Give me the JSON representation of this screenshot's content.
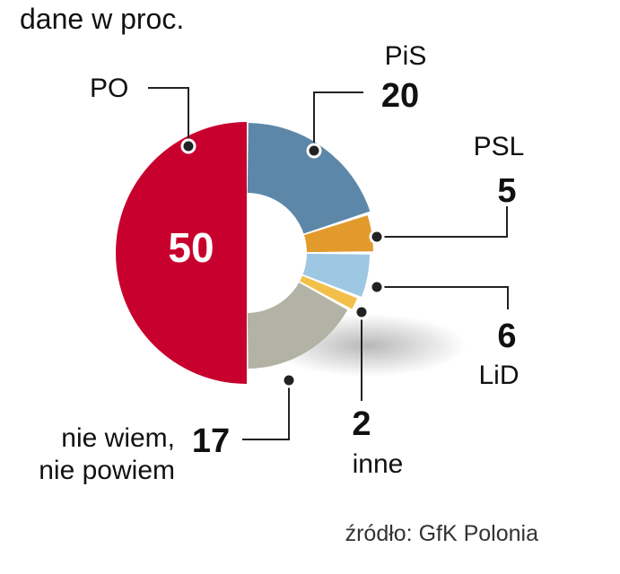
{
  "chart_data": {
    "type": "pie",
    "subtitle": "dane w proc.",
    "source": "źródło: GfK Polonia",
    "slices": [
      {
        "key": "pis",
        "label": "PiS",
        "value": 20,
        "value_text": "20",
        "color": "#5c87a8"
      },
      {
        "key": "psl",
        "label": "PSL",
        "value": 5,
        "value_text": "5",
        "color": "#e39a2d"
      },
      {
        "key": "lid",
        "label": "LiD",
        "value": 6,
        "value_text": "6",
        "color": "#9ec7e3"
      },
      {
        "key": "inne",
        "label": "inne",
        "value": 2,
        "value_text": "2",
        "color": "#f2c04a"
      },
      {
        "key": "nie",
        "label_line1": "nie wiem,",
        "label_line2": "nie powiem",
        "value": 17,
        "value_text": "17",
        "color": "#b3b3a5"
      },
      {
        "key": "po",
        "label": "PO",
        "value": 50,
        "value_text": "50",
        "color": "#c8002d"
      }
    ]
  }
}
